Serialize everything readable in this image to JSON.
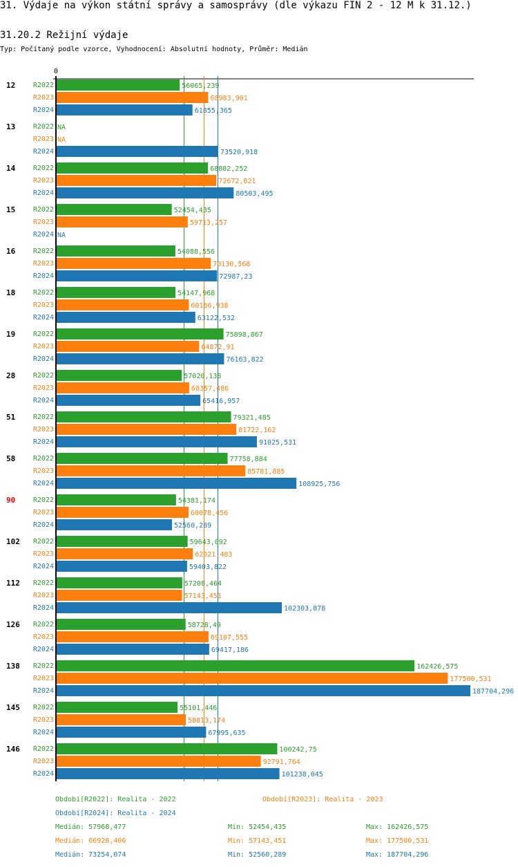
{
  "page": {
    "title": "31. Výdaje na výkon státní správy a samosprávy (dle výkazu FIN 2 - 12 M k 31.12.)",
    "subtitle": "31.20.2 Režijní výdaje",
    "type_line": "Typ: Počítaný podle vzorce, Vyhodnocení: Absolutní hodnoty, Průměr: Medián"
  },
  "chart_data": {
    "type": "bar",
    "orientation": "horizontal",
    "title": "31.20.2 Režijní výdaje",
    "xlabel": "",
    "ylabel": "",
    "x_tick_labels": [
      "0"
    ],
    "xlim": [
      0,
      187704.296
    ],
    "colors": {
      "R2022": "#2ca02c",
      "R2023": "#ff7f0e",
      "R2024": "#1f77b4",
      "highlight": "#ff0000",
      "axis": "#000000"
    },
    "series_names": [
      "R2022",
      "R2023",
      "R2024"
    ],
    "groups": [
      {
        "label": "12",
        "highlight": false,
        "values": [
          56065.239,
          68983.901,
          61855.365
        ],
        "value_labels": [
          "56065,239",
          "68983,901",
          "61855,365"
        ]
      },
      {
        "label": "13",
        "highlight": false,
        "values": [
          null,
          null,
          73520.918
        ],
        "value_labels": [
          "NA",
          "NA",
          "73520,918"
        ]
      },
      {
        "label": "14",
        "highlight": false,
        "values": [
          68882.252,
          72672.821,
          80503.495
        ],
        "value_labels": [
          "68882,252",
          "72672,821",
          "80503,495"
        ]
      },
      {
        "label": "15",
        "highlight": false,
        "values": [
          52454.435,
          59713.257,
          null
        ],
        "value_labels": [
          "52454,435",
          "59713,257",
          "NA"
        ]
      },
      {
        "label": "16",
        "highlight": false,
        "values": [
          54088.556,
          70130.568,
          72987.23
        ],
        "value_labels": [
          "54088,556",
          "70130,568",
          "72987,23"
        ]
      },
      {
        "label": "18",
        "highlight": false,
        "values": [
          54147.968,
          60186.938,
          63122.532
        ],
        "value_labels": [
          "54147,968",
          "60186,938",
          "63122,532"
        ]
      },
      {
        "label": "19",
        "highlight": false,
        "values": [
          75898.867,
          64872.91,
          76163.822
        ],
        "value_labels": [
          "75898,867",
          "64872,91",
          "76163,822"
        ]
      },
      {
        "label": "28",
        "highlight": false,
        "values": [
          57020.138,
          60357.486,
          65416.957
        ],
        "value_labels": [
          "57020,138",
          "60357,486",
          "65416,957"
        ]
      },
      {
        "label": "51",
        "highlight": false,
        "values": [
          79321.485,
          81722.162,
          91025.531
        ],
        "value_labels": [
          "79321,485",
          "81722,162",
          "91025,531"
        ]
      },
      {
        "label": "58",
        "highlight": false,
        "values": [
          77758.884,
          85781.885,
          108925.756
        ],
        "value_labels": [
          "77758,884",
          "85781,885",
          "108925,756"
        ]
      },
      {
        "label": "90",
        "highlight": true,
        "values": [
          54381.174,
          60078.456,
          52560.289
        ],
        "value_labels": [
          "54381,174",
          "60078,456",
          "52560,289"
        ]
      },
      {
        "label": "102",
        "highlight": false,
        "values": [
          59643.092,
          62021.483,
          59403.822
        ],
        "value_labels": [
          "59643,092",
          "62021,483",
          "59403,822"
        ]
      },
      {
        "label": "112",
        "highlight": false,
        "values": [
          57208.464,
          57143.451,
          102303.878
        ],
        "value_labels": [
          "57208,464",
          "57143,451",
          "102303,878"
        ]
      },
      {
        "label": "126",
        "highlight": false,
        "values": [
          58728.49,
          69107.555,
          69417.186
        ],
        "value_labels": [
          "58728,49",
          "69107,555",
          "69417,186"
        ]
      },
      {
        "label": "138",
        "highlight": false,
        "values": [
          162426.575,
          177500.531,
          187704.296
        ],
        "value_labels": [
          "162426,575",
          "177500,531",
          "187704,296"
        ]
      },
      {
        "label": "145",
        "highlight": false,
        "values": [
          55101.446,
          58813.174,
          67995.635
        ],
        "value_labels": [
          "55101,446",
          "58813,174",
          "67995,635"
        ]
      },
      {
        "label": "146",
        "highlight": false,
        "values": [
          100242.75,
          92791.764,
          101238.045
        ],
        "value_labels": [
          "100242,75",
          "92791,764",
          "101238,045"
        ]
      }
    ],
    "medians": [
      57968.477,
      66928.406,
      73254.074
    ],
    "legend": {
      "periods": [
        "Období[R2022]: Realita - 2022",
        "Období[R2023]: Realita - 2023",
        "Období[R2024]: Realita - 2024"
      ],
      "stats": [
        {
          "median": "Medián: 57968,477",
          "min": "Min: 52454,435",
          "max": "Max: 162426,575"
        },
        {
          "median": "Medián: 66928,406",
          "min": "Min: 57143,451",
          "max": "Max: 177500,531"
        },
        {
          "median": "Medián: 73254,074",
          "min": "Min: 52560,289",
          "max": "Max: 187704,296"
        }
      ]
    }
  }
}
